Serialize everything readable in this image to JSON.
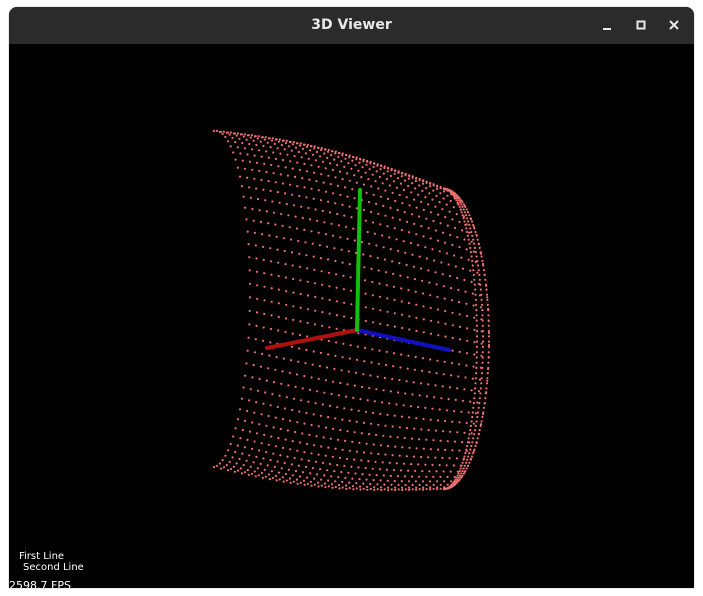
{
  "window": {
    "title": "3D Viewer",
    "controls": [
      "minimize",
      "maximize",
      "close"
    ]
  },
  "viewport": {
    "background": "#000000",
    "overlay_lines": [
      "First Line",
      "Second Line"
    ],
    "fps": "2598.7 FPS",
    "point_color": "#f07070",
    "axes": {
      "x_color": "#b01010",
      "y_color": "#10c010",
      "z_color": "#1010c0"
    }
  }
}
